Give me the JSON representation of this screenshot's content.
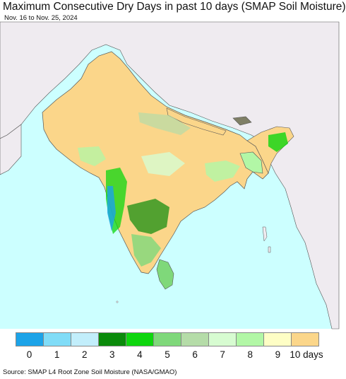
{
  "title": "Maximum Consecutive Dry Days in past 10 days (SMAP Soil Moisture)",
  "subtitle": "Nov. 16 to Nov. 25, 2024",
  "source": "Source: SMAP L4 Root Zone Soil Moisture (NASA/GMAO)",
  "legend": {
    "colors": [
      "#1ca3e8",
      "#80dcf7",
      "#c2eefb",
      "#0a8a0a",
      "#0ed60e",
      "#7fd87a",
      "#b5dca8",
      "#d7fcd1",
      "#b2f7a6",
      "#fefec5",
      "#fbd68a"
    ],
    "labels": [
      "0",
      "1",
      "2",
      "3",
      "4",
      "5",
      "6",
      "7",
      "8",
      "9",
      "10 days"
    ]
  },
  "colors": {
    "ocean": "#ccffff",
    "land_other": "#efebf0",
    "land_dry": "#fbd68a",
    "border": "#555555"
  }
}
